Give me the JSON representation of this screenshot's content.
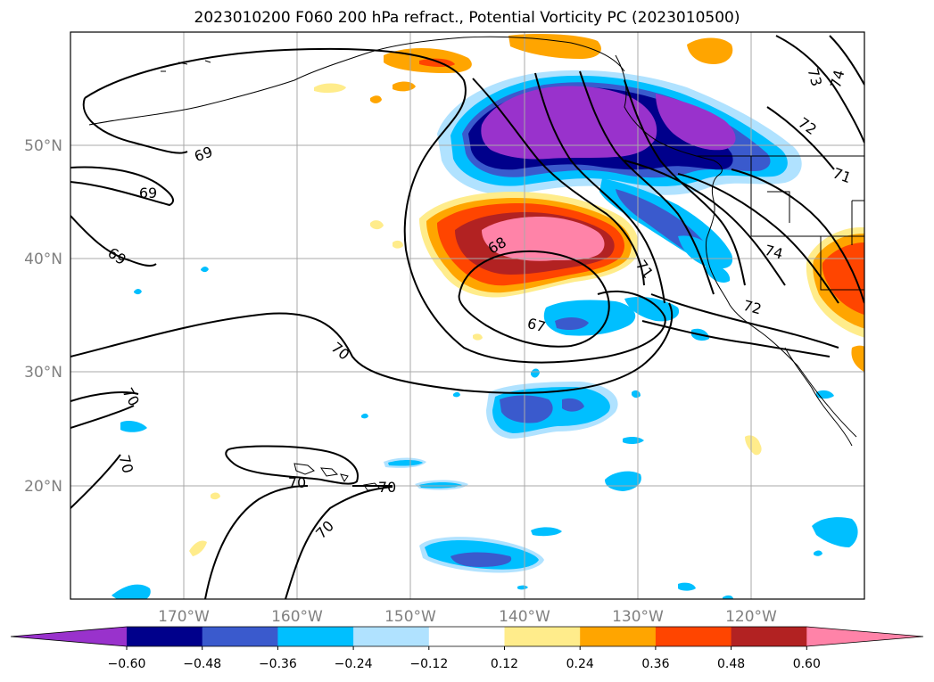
{
  "title": "2023010200 F060 200 hPa refract., Potential Vorticity PC (2023010500)",
  "map": {
    "lon_range": [
      -180,
      -110
    ],
    "lat_range": [
      10,
      60
    ],
    "lat_ticks": [
      {
        "lat": 50,
        "label": "50°N"
      },
      {
        "lat": 40,
        "label": "40°N"
      },
      {
        "lat": 30,
        "label": "30°N"
      },
      {
        "lat": 20,
        "label": "20°N"
      }
    ],
    "lon_ticks": [
      {
        "lon": -170,
        "label": "170°W"
      },
      {
        "lon": -160,
        "label": "160°W"
      },
      {
        "lon": -150,
        "label": "150°W"
      },
      {
        "lon": -140,
        "label": "140°W"
      },
      {
        "lon": -130,
        "label": "130°W"
      },
      {
        "lon": -120,
        "label": "120°W"
      }
    ],
    "contour_labels": [
      "69",
      "69",
      "69",
      "70",
      "70",
      "70",
      "70",
      "70",
      "70",
      "68",
      "67",
      "71",
      "72",
      "72",
      "73",
      "74",
      "71",
      "74"
    ]
  },
  "colorbar": {
    "levels": [
      "−0.60",
      "−0.48",
      "−0.36",
      "−0.24",
      "−0.12",
      "0.12",
      "0.24",
      "0.36",
      "0.48",
      "0.60"
    ],
    "colors": [
      "#9932cc",
      "#00008b",
      "#3a5acd",
      "#00bfff",
      "#b0e2ff",
      "#ffffff",
      "#ffec8b",
      "#ffa500",
      "#ff4500",
      "#b22222",
      "#ff83a8"
    ]
  }
}
